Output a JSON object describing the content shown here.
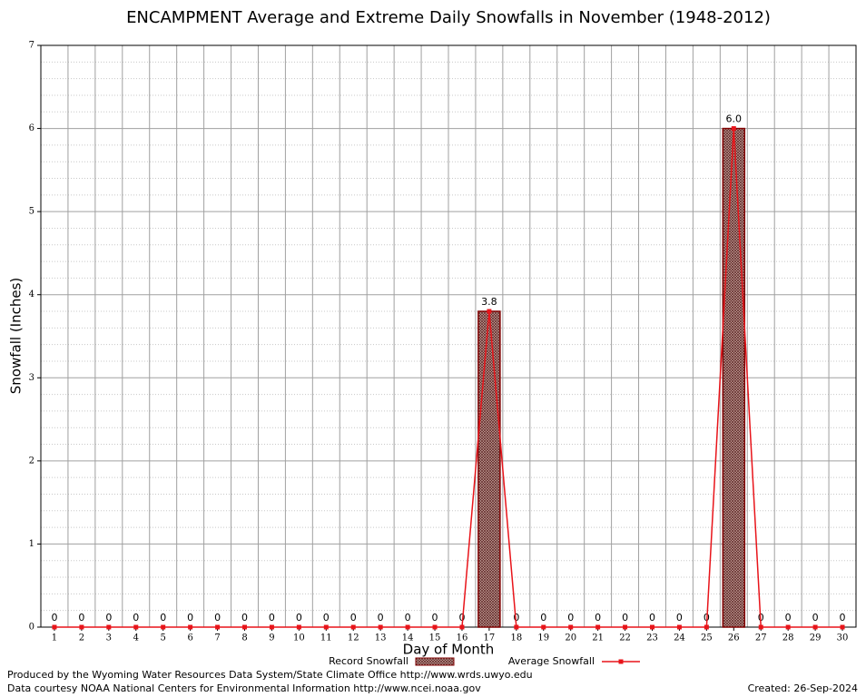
{
  "chart_data": {
    "type": "bar",
    "title": "ENCAMPMENT Average and Extreme Daily Snowfalls in November (1948-2012)",
    "x_label": "Day of Month",
    "y_label": "Snowfall (Inches)",
    "categories": [
      "1",
      "2",
      "3",
      "4",
      "5",
      "6",
      "7",
      "8",
      "9",
      "10",
      "11",
      "12",
      "13",
      "14",
      "15",
      "16",
      "17",
      "18",
      "19",
      "20",
      "21",
      "22",
      "23",
      "24",
      "25",
      "26",
      "27",
      "28",
      "29",
      "30"
    ],
    "series": [
      {
        "name": "Record Snowfall",
        "type": "bar",
        "color": "#800000",
        "values": [
          0,
          0,
          0,
          0,
          0,
          0,
          0,
          0,
          0,
          0,
          0,
          0,
          0,
          0,
          0,
          0,
          3.8,
          0,
          0,
          0,
          0,
          0,
          0,
          0,
          0,
          6,
          0,
          0,
          0,
          0
        ],
        "value_labels": [
          "0",
          "0",
          "0",
          "0",
          "0",
          "0",
          "0",
          "0",
          "0",
          "0",
          "0",
          "0",
          "0",
          "0",
          "0",
          "0",
          "3.8",
          "0",
          "0",
          "0",
          "0",
          "0",
          "0",
          "0",
          "0",
          "6.0",
          "0",
          "0",
          "0",
          "0"
        ]
      },
      {
        "name": "Average Snowfall",
        "type": "line",
        "color": "#e8141a",
        "values": [
          0,
          0,
          0,
          0,
          0,
          0,
          0,
          0,
          0,
          0,
          0,
          0,
          0,
          0,
          0,
          0,
          3.8,
          0,
          0,
          0,
          0,
          0,
          0,
          0,
          0,
          6,
          0,
          0,
          0,
          0
        ]
      }
    ],
    "ylim": [
      0,
      7
    ],
    "yticks": [
      0,
      1,
      2,
      3,
      4,
      5,
      6,
      7
    ],
    "grid": true,
    "footer": [
      "Produced by the Wyoming Water Resources Data System/State Climate Office http://www.wrds.uwyo.edu",
      "Data courtesy NOAA National Centers for Environmental Information http://www.ncei.noaa.gov"
    ],
    "created": "Created: 26-Sep-2024"
  }
}
